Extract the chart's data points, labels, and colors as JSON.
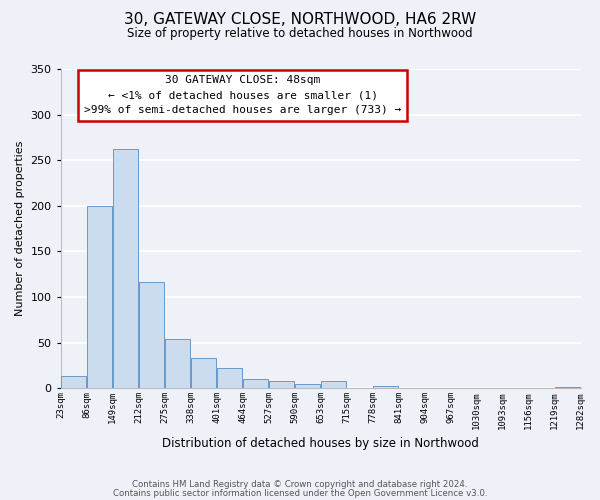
{
  "title": "30, GATEWAY CLOSE, NORTHWOOD, HA6 2RW",
  "subtitle": "Size of property relative to detached houses in Northwood",
  "bar_values": [
    13,
    200,
    262,
    117,
    54,
    33,
    22,
    10,
    8,
    5,
    8,
    0,
    2,
    0,
    0,
    0,
    0,
    0,
    0,
    1
  ],
  "bin_labels": [
    "23sqm",
    "86sqm",
    "149sqm",
    "212sqm",
    "275sqm",
    "338sqm",
    "401sqm",
    "464sqm",
    "527sqm",
    "590sqm",
    "653sqm",
    "715sqm",
    "778sqm",
    "841sqm",
    "904sqm",
    "967sqm",
    "1030sqm",
    "1093sqm",
    "1156sqm",
    "1219sqm",
    "1282sqm"
  ],
  "bar_color": "#ccdcef",
  "bar_edge_color": "#6699cc",
  "ylim": [
    0,
    350
  ],
  "yticks": [
    0,
    50,
    100,
    150,
    200,
    250,
    300,
    350
  ],
  "ylabel": "Number of detached properties",
  "xlabel": "Distribution of detached houses by size in Northwood",
  "annotation_title": "30 GATEWAY CLOSE: 48sqm",
  "annotation_line1": "← <1% of detached houses are smaller (1)",
  "annotation_line2": ">99% of semi-detached houses are larger (733) →",
  "annotation_box_color": "#ffffff",
  "annotation_box_edge": "#cc0000",
  "footer1": "Contains HM Land Registry data © Crown copyright and database right 2024.",
  "footer2": "Contains public sector information licensed under the Open Government Licence v3.0.",
  "bg_color": "#eef2f8",
  "plot_bg_color": "#eef2f8"
}
